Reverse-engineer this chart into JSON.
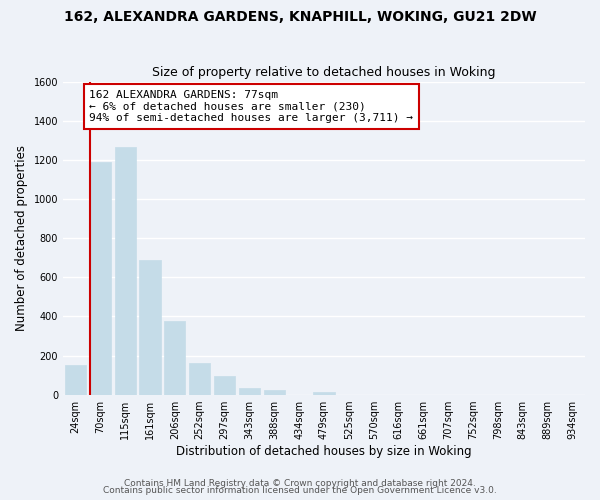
{
  "title": "162, ALEXANDRA GARDENS, KNAPHILL, WOKING, GU21 2DW",
  "subtitle": "Size of property relative to detached houses in Woking",
  "xlabel": "Distribution of detached houses by size in Woking",
  "ylabel": "Number of detached properties",
  "bar_labels": [
    "24sqm",
    "70sqm",
    "115sqm",
    "161sqm",
    "206sqm",
    "252sqm",
    "297sqm",
    "343sqm",
    "388sqm",
    "434sqm",
    "479sqm",
    "525sqm",
    "570sqm",
    "616sqm",
    "661sqm",
    "707sqm",
    "752sqm",
    "798sqm",
    "843sqm",
    "889sqm",
    "934sqm"
  ],
  "bar_values": [
    150,
    1190,
    1265,
    690,
    375,
    163,
    93,
    35,
    22,
    0,
    15,
    0,
    0,
    0,
    0,
    0,
    0,
    0,
    0,
    0,
    0
  ],
  "bar_color": "#c5dce8",
  "vline_x_index": 1,
  "vline_color": "#cc0000",
  "annotation_line1": "162 ALEXANDRA GARDENS: 77sqm",
  "annotation_line2": "← 6% of detached houses are smaller (230)",
  "annotation_line3": "94% of semi-detached houses are larger (3,711) →",
  "annotation_box_color": "#ffffff",
  "annotation_box_edgecolor": "#cc0000",
  "ylim": [
    0,
    1600
  ],
  "yticks": [
    0,
    200,
    400,
    600,
    800,
    1000,
    1200,
    1400,
    1600
  ],
  "footer1": "Contains HM Land Registry data © Crown copyright and database right 2024.",
  "footer2": "Contains public sector information licensed under the Open Government Licence v3.0.",
  "bg_color": "#eef2f8",
  "plot_bg_color": "#eef2f8",
  "title_fontsize": 10,
  "subtitle_fontsize": 9,
  "axis_label_fontsize": 8.5,
  "tick_fontsize": 7,
  "annotation_fontsize": 8,
  "footer_fontsize": 6.5
}
